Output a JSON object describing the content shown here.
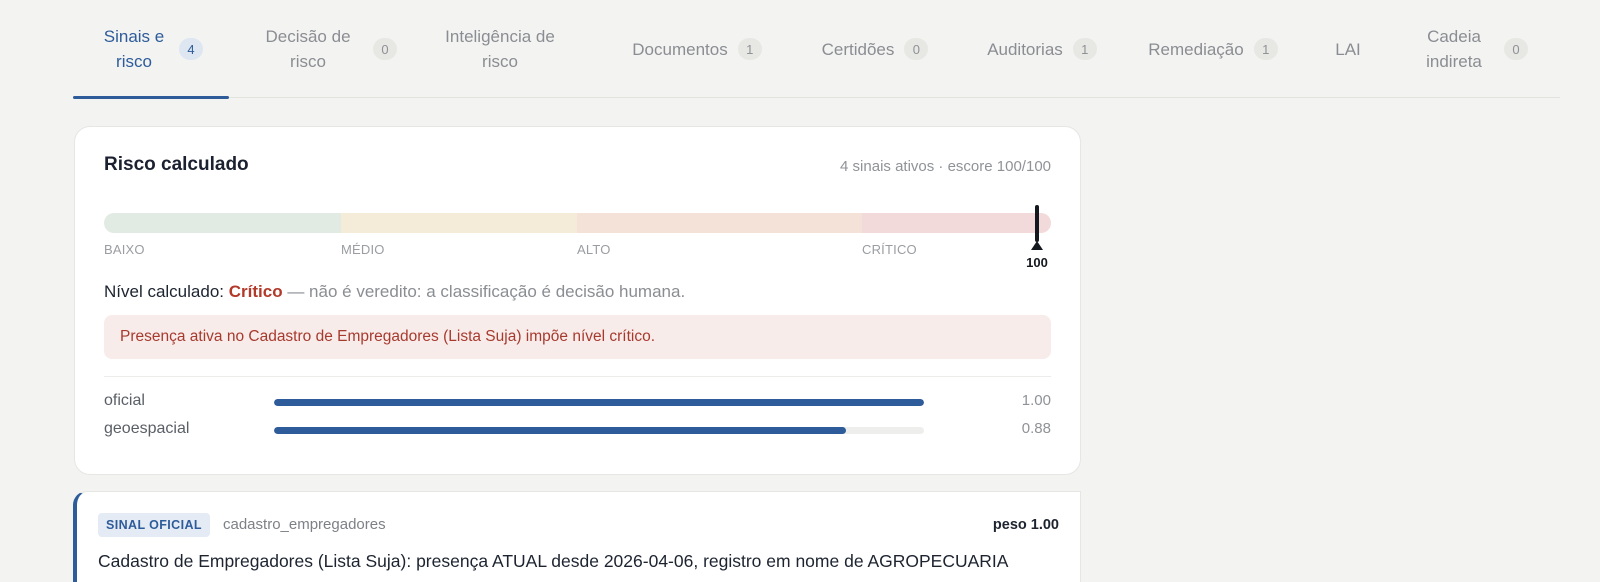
{
  "tabs": [
    {
      "label": "Sinais e risco",
      "count": "4",
      "active": true
    },
    {
      "label": "Decisão de risco",
      "count": "0"
    },
    {
      "label": "Inteligência de risco",
      "count": ""
    },
    {
      "label": "Documentos",
      "count": "1"
    },
    {
      "label": "Certidões",
      "count": "0"
    },
    {
      "label": "Auditorias",
      "count": "1"
    },
    {
      "label": "Remediação",
      "count": "1"
    },
    {
      "label": "LAI",
      "count": ""
    },
    {
      "label": "Cadeia indireta",
      "count": "0"
    }
  ],
  "risk_card": {
    "title": "Risco calculado",
    "meta": "4 sinais ativos · escore 100/100",
    "scale_labels": [
      "BAIXO",
      "MÉDIO",
      "ALTO",
      "CRÍTICO"
    ],
    "score": 100,
    "score_label": "100",
    "level_prefix": "Nível calculado:",
    "level_value": "Crítico",
    "level_note": "— não é veredito: a classificação é decisão humana.",
    "alert": "Presença ativa no Cadastro de Empregadores (Lista Suja) impõe nível crítico.",
    "colors": {
      "critical": "#b23a2a",
      "accent": "#2e5c9a"
    },
    "metrics": [
      {
        "name": "oficial",
        "value": 1.0,
        "value_label": "1.00"
      },
      {
        "name": "geoespacial",
        "value": 0.88,
        "value_label": "0.88"
      }
    ]
  },
  "signal": {
    "badge": "SINAL OFICIAL",
    "source": "cadastro_empregadores",
    "weight": "peso 1.00",
    "text": "Cadastro de Empregadores (Lista Suja): presença ATUAL desde 2026-04-06, registro em nome de AGROPECUARIA"
  }
}
